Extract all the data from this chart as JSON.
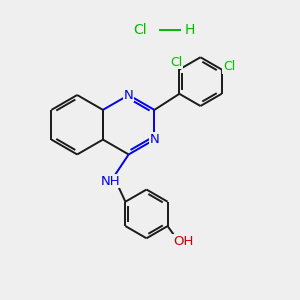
{
  "background_color": "#efefef",
  "bond_color": "#1a1a1a",
  "nitrogen_color": "#0000ee",
  "oxygen_color": "#cc0000",
  "chlorine_color": "#00bb00",
  "hcl_color": "#00bb00",
  "bond_width": 1.4,
  "font_size_atoms": 9.5,
  "font_size_hcl": 10,
  "xlim": [
    0,
    10
  ],
  "ylim": [
    0,
    10
  ]
}
